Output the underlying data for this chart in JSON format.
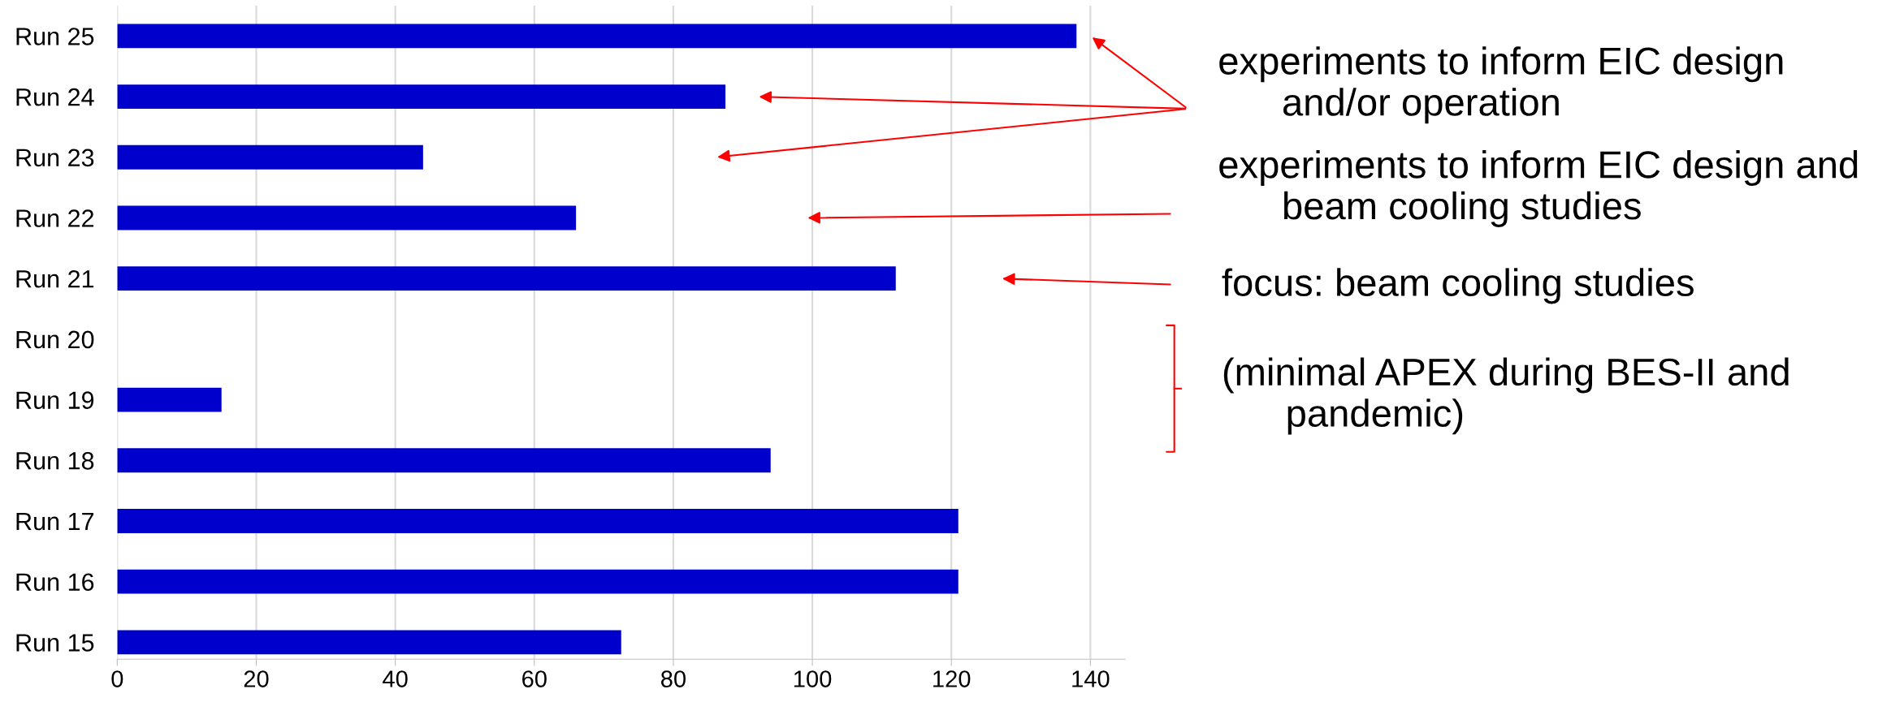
{
  "chart_data": {
    "type": "bar",
    "orientation": "horizontal",
    "categories": [
      "Run 25",
      "Run 24",
      "Run 23",
      "Run 22",
      "Run 21",
      "Run 20",
      "Run 19",
      "Run 18",
      "Run 17",
      "Run 16",
      "Run 15"
    ],
    "values": [
      138,
      87.5,
      44,
      66,
      112,
      null,
      15,
      94,
      121,
      121,
      72.5
    ],
    "color": "#0000cc",
    "xlim": [
      0,
      145
    ],
    "xticks": [
      0,
      20,
      40,
      60,
      80,
      100,
      120,
      140
    ],
    "grid": "x",
    "annotations": [
      "experiments to inform EIC design\nand/or operation",
      "experiments to inform EIC design and\nbeam cooling studies",
      "focus: beam cooling studies",
      "(minimal APEX during BES-II and\npandemic)"
    ]
  }
}
